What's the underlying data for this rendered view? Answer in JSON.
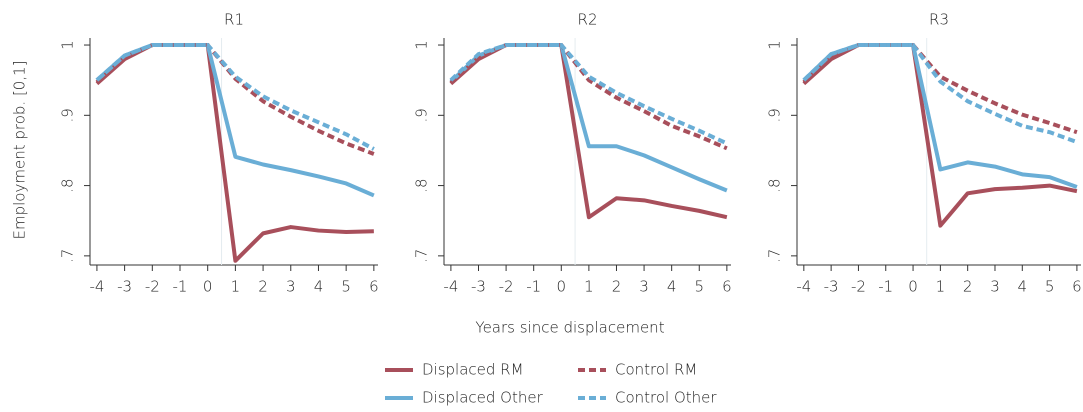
{
  "chart_data": [
    {
      "type": "line",
      "title": "R1",
      "y_label": "Employment prob. [0,1]",
      "x": [
        -4,
        -3,
        -2,
        -1,
        0,
        1,
        2,
        3,
        4,
        5,
        6
      ],
      "xlim": [
        -4.25,
        6.15
      ],
      "xticks": [
        -4,
        -3,
        -2,
        -1,
        0,
        1,
        2,
        3,
        4,
        5,
        6
      ],
      "ylim": [
        0.687,
        1.01
      ],
      "yticks": [
        {
          "value": 0.7,
          "label": ".7"
        },
        {
          "value": 0.8,
          "label": ".8"
        },
        {
          "value": 0.9,
          "label": ".9"
        },
        1
      ],
      "vline": 0.5,
      "series": [
        {
          "name": "Displaced RM",
          "color": "#a84f5b",
          "dashed": false,
          "values": [
            0.945,
            0.98,
            1,
            1,
            1,
            0.693,
            0.732,
            0.741,
            0.736,
            0.734,
            0.735
          ]
        },
        {
          "name": "Displaced Other",
          "color": "#6aaed6",
          "dashed": false,
          "values": [
            0.95,
            0.985,
            1,
            1,
            1,
            0.841,
            0.83,
            0.822,
            0.813,
            0.803,
            0.786
          ]
        },
        {
          "name": "Control RM",
          "color": "#a84f5b",
          "dashed": true,
          "values": [
            0.947,
            0.982,
            1,
            1,
            1,
            0.952,
            0.92,
            0.898,
            0.878,
            0.86,
            0.845
          ]
        },
        {
          "name": "Control Other",
          "color": "#6aaed6",
          "dashed": true,
          "values": [
            0.95,
            0.985,
            1,
            1,
            1,
            0.955,
            0.927,
            0.907,
            0.89,
            0.873,
            0.852
          ]
        }
      ]
    },
    {
      "type": "line",
      "title": "R2",
      "x_label": "Years since displacement",
      "x": [
        -4,
        -3,
        -2,
        -1,
        0,
        1,
        2,
        3,
        4,
        5,
        6
      ],
      "xlim": [
        -4.25,
        6.15
      ],
      "xticks": [
        -4,
        -3,
        -2,
        -1,
        0,
        1,
        2,
        3,
        4,
        5,
        6
      ],
      "ylim": [
        0.687,
        1.01
      ],
      "yticks": [
        {
          "value": 0.7,
          "label": ".7"
        },
        {
          "value": 0.8,
          "label": ".8"
        },
        {
          "value": 0.9,
          "label": ".9"
        },
        1
      ],
      "vline": 0.5,
      "series": [
        {
          "name": "Displaced RM",
          "color": "#a84f5b",
          "dashed": false,
          "values": [
            0.945,
            0.98,
            1,
            1,
            1,
            0.755,
            0.782,
            0.779,
            0.771,
            0.764,
            0.755
          ]
        },
        {
          "name": "Displaced Other",
          "color": "#6aaed6",
          "dashed": false,
          "values": [
            0.948,
            0.985,
            1,
            1,
            1,
            0.856,
            0.856,
            0.843,
            0.826,
            0.809,
            0.793
          ]
        },
        {
          "name": "Control RM",
          "color": "#a84f5b",
          "dashed": true,
          "values": [
            0.946,
            0.982,
            1,
            1,
            1,
            0.95,
            0.925,
            0.906,
            0.885,
            0.87,
            0.853
          ]
        },
        {
          "name": "Control Other",
          "color": "#6aaed6",
          "dashed": true,
          "values": [
            0.95,
            0.987,
            1,
            1,
            1,
            0.955,
            0.932,
            0.913,
            0.895,
            0.878,
            0.86
          ]
        }
      ]
    },
    {
      "type": "line",
      "title": "R3",
      "x": [
        -4,
        -3,
        -2,
        -1,
        0,
        1,
        2,
        3,
        4,
        5,
        6
      ],
      "xlim": [
        -4.25,
        6.15
      ],
      "xticks": [
        -4,
        -3,
        -2,
        -1,
        0,
        1,
        2,
        3,
        4,
        5,
        6
      ],
      "ylim": [
        0.687,
        1.01
      ],
      "yticks": [
        {
          "value": 0.7,
          "label": ".7"
        },
        {
          "value": 0.8,
          "label": ".8"
        },
        {
          "value": 0.9,
          "label": ".9"
        },
        1
      ],
      "vline": 0.5,
      "series": [
        {
          "name": "Displaced RM",
          "color": "#a84f5b",
          "dashed": false,
          "values": [
            0.945,
            0.98,
            1,
            1,
            1,
            0.743,
            0.789,
            0.795,
            0.797,
            0.8,
            0.792
          ]
        },
        {
          "name": "Displaced Other",
          "color": "#6aaed6",
          "dashed": false,
          "values": [
            0.95,
            0.987,
            1,
            1,
            1,
            0.823,
            0.833,
            0.827,
            0.816,
            0.812,
            0.798
          ]
        },
        {
          "name": "Control RM",
          "color": "#a84f5b",
          "dashed": true,
          "values": [
            0.947,
            0.982,
            1,
            1,
            1,
            0.955,
            0.935,
            0.917,
            0.901,
            0.889,
            0.876
          ]
        },
        {
          "name": "Control Other",
          "color": "#6aaed6",
          "dashed": true,
          "values": [
            0.95,
            0.987,
            1,
            1,
            1,
            0.948,
            0.92,
            0.902,
            0.885,
            0.876,
            0.862
          ]
        }
      ]
    }
  ]
}
